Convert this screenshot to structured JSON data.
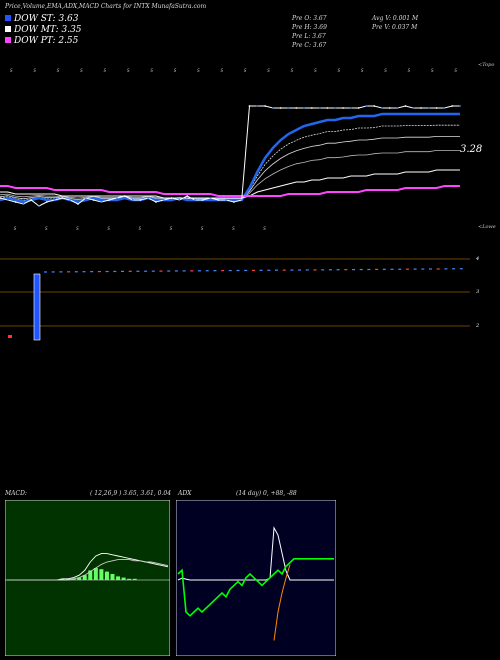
{
  "header": {
    "title": "Price,Volume,EMA,ADX,MACD Charts for INTX  MunafaSutra.com"
  },
  "legend": [
    {
      "label": "DOW ST: 3.63",
      "color": "#2255ff"
    },
    {
      "label": "DOW MT: 3.35",
      "color": "#ffffff"
    },
    {
      "label": "DOW PT: 2.55",
      "color": "#ff44ff"
    }
  ],
  "ohlc": {
    "open": "Pre   O: 3.67",
    "high": "Pre   H: 3.69",
    "low": "Pre   L: 3.67",
    "close": "Pre   C: 3.67",
    "avg_volume": "Avg V: 0.001 M",
    "prev_volume": "Pre   V: 0.037 M"
  },
  "price_panel": {
    "top_note": "<Topo",
    "bottom_note": "<Lowe",
    "last_price_label": "3.28"
  },
  "volume_panel": {
    "levels": [
      "4",
      "3",
      "2"
    ]
  },
  "macd": {
    "title": "MACD:",
    "params": "( 12,26,9 ) 3.65,  3.61,  0.04"
  },
  "adx": {
    "title": "ADX",
    "params": "(14  day) 0,  +88,  -88"
  },
  "chart_data": [
    {
      "type": "line",
      "title": "Price,Volume,EMA,ADX,MACD Charts for INTX",
      "x": [
        0,
        1,
        2,
        3,
        4,
        5,
        6,
        7,
        8,
        9,
        10,
        11,
        12,
        13,
        14,
        15,
        16,
        17,
        18,
        19,
        20,
        21,
        22,
        23,
        24,
        25,
        26,
        27,
        28,
        29,
        30,
        31,
        32,
        33,
        34,
        35,
        36,
        37,
        38,
        39,
        40,
        41,
        42,
        43,
        44,
        45,
        46,
        47,
        48,
        49,
        50,
        51,
        52,
        53,
        54,
        55,
        56,
        57,
        58,
        59
      ],
      "series": [
        {
          "name": "DOW ST",
          "values": [
            3.2,
            3.21,
            3.2,
            3.19,
            3.2,
            3.21,
            3.2,
            3.2,
            3.21,
            3.2,
            3.19,
            3.2,
            3.21,
            3.2,
            3.2,
            3.2,
            3.21,
            3.2,
            3.2,
            3.21,
            3.2,
            3.2,
            3.2,
            3.21,
            3.2,
            3.2,
            3.2,
            3.2,
            3.2,
            3.2,
            3.2,
            3.2,
            3.26,
            3.34,
            3.41,
            3.46,
            3.5,
            3.53,
            3.55,
            3.57,
            3.58,
            3.59,
            3.6,
            3.6,
            3.61,
            3.61,
            3.62,
            3.62,
            3.62,
            3.63,
            3.63,
            3.63,
            3.63,
            3.63,
            3.63,
            3.63,
            3.63,
            3.63,
            3.63,
            3.63
          ]
        },
        {
          "name": "DOW MT",
          "values": [
            3.24,
            3.24,
            3.23,
            3.23,
            3.23,
            3.23,
            3.23,
            3.23,
            3.22,
            3.22,
            3.22,
            3.22,
            3.22,
            3.22,
            3.22,
            3.22,
            3.22,
            3.22,
            3.22,
            3.22,
            3.22,
            3.21,
            3.21,
            3.21,
            3.21,
            3.21,
            3.21,
            3.21,
            3.21,
            3.21,
            3.21,
            3.21,
            3.22,
            3.24,
            3.25,
            3.26,
            3.27,
            3.28,
            3.29,
            3.29,
            3.3,
            3.3,
            3.31,
            3.31,
            3.31,
            3.32,
            3.32,
            3.32,
            3.33,
            3.33,
            3.33,
            3.33,
            3.34,
            3.34,
            3.34,
            3.34,
            3.35,
            3.35,
            3.35,
            3.35
          ]
        },
        {
          "name": "DOW PT",
          "values": [
            3.27,
            3.27,
            3.26,
            3.26,
            3.26,
            3.26,
            3.26,
            3.25,
            3.25,
            3.25,
            3.25,
            3.25,
            3.25,
            3.25,
            3.24,
            3.24,
            3.24,
            3.24,
            3.24,
            3.24,
            3.24,
            3.23,
            3.23,
            3.23,
            3.23,
            3.23,
            3.23,
            3.23,
            3.22,
            3.22,
            3.22,
            3.22,
            3.22,
            3.22,
            3.22,
            3.22,
            3.22,
            3.23,
            3.23,
            3.23,
            3.23,
            3.23,
            3.24,
            3.24,
            3.24,
            3.24,
            3.24,
            3.25,
            3.25,
            3.25,
            3.25,
            3.25,
            3.26,
            3.26,
            3.26,
            3.26,
            3.26,
            3.27,
            3.27,
            3.27
          ]
        },
        {
          "name": "Price",
          "values": [
            3.21,
            3.2,
            3.19,
            3.18,
            3.2,
            3.17,
            3.19,
            3.2,
            3.21,
            3.2,
            3.18,
            3.21,
            3.2,
            3.19,
            3.2,
            3.21,
            3.22,
            3.2,
            3.2,
            3.21,
            3.19,
            3.2,
            3.21,
            3.2,
            3.22,
            3.2,
            3.2,
            3.21,
            3.2,
            3.2,
            3.19,
            3.2,
            3.67,
            3.67,
            3.67,
            3.66,
            3.66,
            3.66,
            3.66,
            3.66,
            3.66,
            3.66,
            3.66,
            3.66,
            3.66,
            3.66,
            3.66,
            3.67,
            3.67,
            3.66,
            3.66,
            3.66,
            3.67,
            3.66,
            3.66,
            3.66,
            3.66,
            3.66,
            3.67,
            3.67
          ]
        }
      ],
      "ylim": [
        3.0,
        3.9
      ]
    },
    {
      "type": "line",
      "title": "MACD:",
      "series": [
        {
          "name": "MACD",
          "values": [
            0,
            0,
            0,
            0,
            0,
            0,
            0,
            0,
            0,
            0,
            0.01,
            0.01,
            0.02,
            0.04,
            0.08,
            0.15,
            0.2,
            0.22,
            0.22,
            0.21,
            0.2,
            0.19,
            0.18,
            0.17,
            0.16,
            0.15,
            0.14,
            0.13,
            0.12,
            0.11
          ]
        },
        {
          "name": "Signal",
          "values": [
            0,
            0,
            0,
            0,
            0,
            0,
            0,
            0,
            0,
            0,
            0,
            0,
            0.01,
            0.02,
            0.04,
            0.07,
            0.1,
            0.13,
            0.15,
            0.16,
            0.17,
            0.17,
            0.17,
            0.16,
            0.16,
            0.15,
            0.15,
            0.14,
            0.13,
            0.12
          ]
        }
      ]
    },
    {
      "type": "line",
      "title": "ADX",
      "series": [
        {
          "name": "ADX",
          "values": [
            30,
            32,
            31,
            30,
            30,
            30,
            30,
            30,
            30,
            30,
            30,
            30,
            30,
            30,
            30,
            30,
            30,
            30,
            30,
            30,
            30,
            30,
            30,
            32,
            88,
            80,
            60,
            40,
            30,
            30,
            30,
            30,
            30,
            30,
            30,
            30,
            30,
            30,
            30,
            30
          ]
        },
        {
          "name": "+DI",
          "values": [
            40,
            42,
            20,
            18,
            20,
            22,
            20,
            22,
            24,
            26,
            28,
            30,
            28,
            32,
            34,
            36,
            34,
            38,
            40,
            38,
            36,
            34,
            36,
            38,
            40,
            42,
            40,
            44,
            46,
            48,
            48,
            48,
            48,
            48,
            48,
            48,
            48,
            48,
            48,
            48
          ]
        },
        {
          "name": "-DI",
          "values": [
            null,
            null,
            null,
            null,
            null,
            null,
            null,
            null,
            null,
            null,
            null,
            null,
            null,
            null,
            null,
            null,
            null,
            null,
            null,
            null,
            null,
            null,
            null,
            null,
            5,
            20,
            30,
            38,
            45,
            null,
            null,
            null,
            null,
            null,
            null,
            null,
            null,
            null,
            null,
            null
          ]
        }
      ],
      "ylim": [
        0,
        100
      ]
    }
  ]
}
